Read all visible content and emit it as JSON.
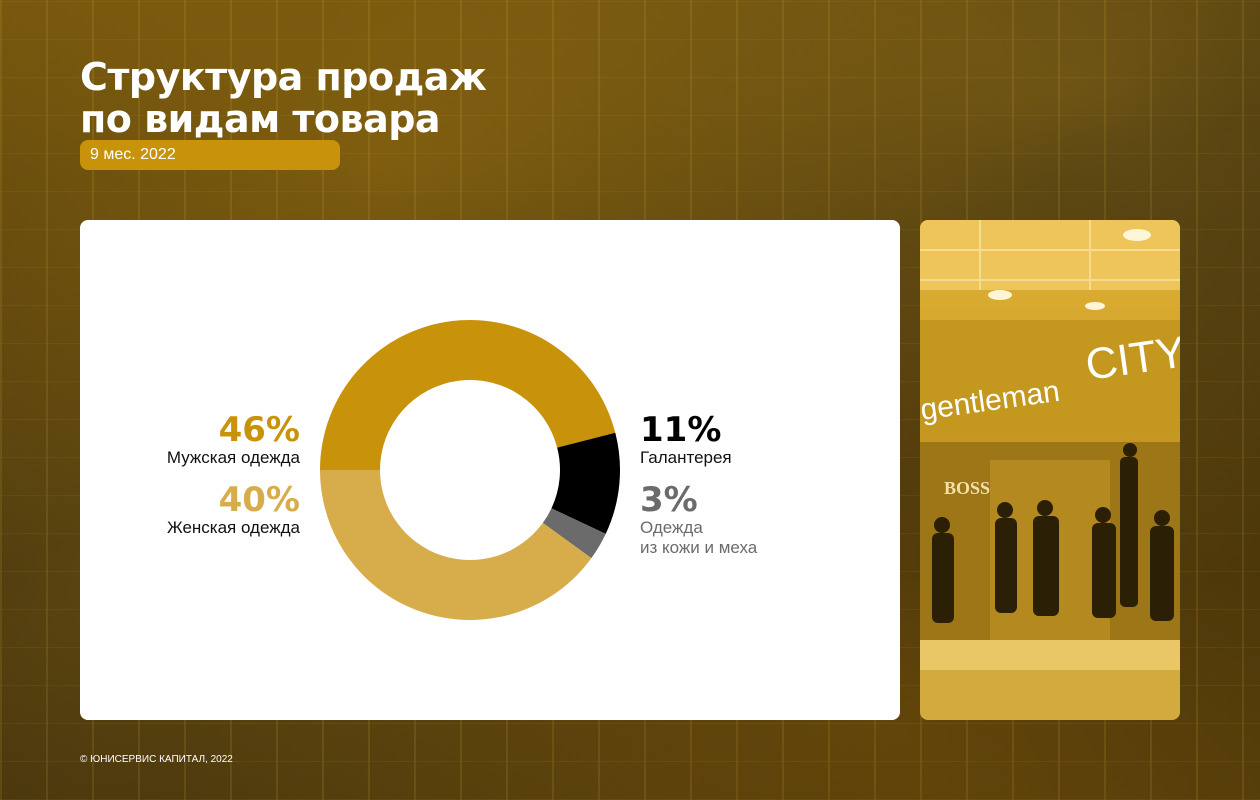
{
  "header": {
    "title_line1": "Структура продаж",
    "title_line2": "по видам товара",
    "period": "9 мес. 2022"
  },
  "chart_data": {
    "type": "pie",
    "slices": [
      {
        "label": "Мужская одежда",
        "value": 46,
        "value_label": "46%",
        "color": "#c8920a"
      },
      {
        "label": "Галантерея",
        "value": 11,
        "value_label": "11%",
        "color": "#000000"
      },
      {
        "label": "Одежда из кожи и меха",
        "value": 3,
        "value_label": "3%",
        "color": "#6b6b6b"
      },
      {
        "label": "Женская одежда",
        "value": 40,
        "value_label": "40%",
        "color": "#d6ad4a"
      }
    ]
  },
  "labels": {
    "mens_pct": "46%",
    "mens_name": "Мужская одежда",
    "womens_pct": "40%",
    "womens_name": "Женская одежда",
    "acc_pct": "11%",
    "acc_name": "Галантерея",
    "leather_pct": "3%",
    "leather_line1": "Одежда",
    "leather_line2": "из кожи и меха"
  },
  "photo": {
    "sign_left": "gentleman",
    "sign_right": "CITY",
    "brand_sign": "BOSS"
  },
  "footer": "© ЮНИСЕРВИС КАПИТАЛ, 2022",
  "colors": {
    "accent": "#c8920a",
    "accent_light": "#d6ad4a"
  }
}
